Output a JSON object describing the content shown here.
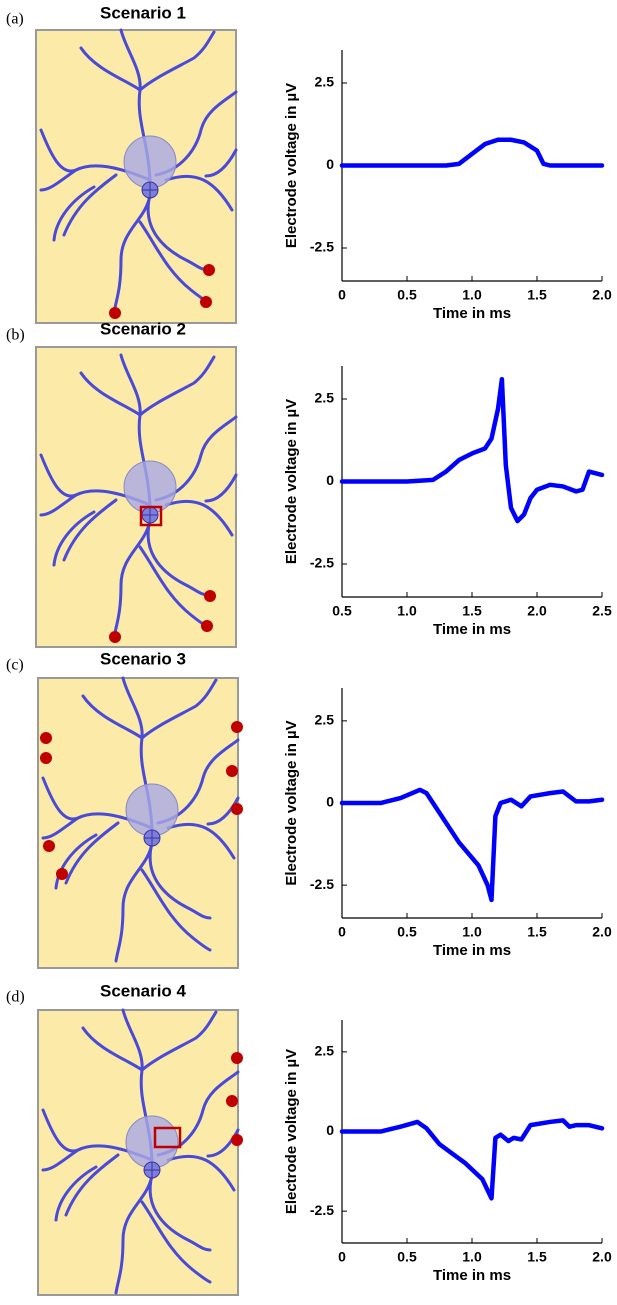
{
  "chart_data": [
    {
      "type": "line",
      "panel_label": "(a)",
      "title": "Scenario 1",
      "xlabel": "Time in ms",
      "ylabel": "Electrode voltage in µV",
      "color": "#0000ff",
      "x": [
        0,
        0.2,
        0.4,
        0.6,
        0.8,
        0.9,
        1.0,
        1.1,
        1.2,
        1.3,
        1.4,
        1.5,
        1.55,
        1.6,
        1.8,
        2.0
      ],
      "values": [
        0,
        0,
        0,
        0,
        0,
        0.05,
        0.35,
        0.65,
        0.78,
        0.78,
        0.7,
        0.45,
        0.05,
        0,
        0,
        0
      ],
      "xlim": [
        0,
        2
      ],
      "xticks": [
        0,
        0.5,
        {
          "value": 1,
          "label": "1.0"
        },
        1.5,
        {
          "value": 2,
          "label": "2.0"
        }
      ],
      "ylim": [
        -3.5,
        3.5
      ],
      "yticks": [
        -2.5,
        0,
        2.5
      ]
    },
    {
      "type": "line",
      "panel_label": "(b)",
      "title": "Scenario 2",
      "xlabel": "Time in ms",
      "ylabel": "Electrode voltage in µV",
      "color": "#0000ff",
      "x": [
        0.5,
        0.8,
        1.0,
        1.2,
        1.3,
        1.4,
        1.5,
        1.6,
        1.65,
        1.7,
        1.73,
        1.76,
        1.8,
        1.85,
        1.9,
        1.95,
        2.0,
        2.1,
        2.2,
        2.3,
        2.35,
        2.4,
        2.5
      ],
      "values": [
        0,
        0,
        0,
        0.05,
        0.3,
        0.65,
        0.85,
        1.0,
        1.3,
        2.2,
        3.1,
        0.5,
        -0.8,
        -1.2,
        -1.0,
        -0.5,
        -0.25,
        -0.1,
        -0.15,
        -0.3,
        -0.25,
        0.3,
        0.2
      ],
      "xlim": [
        0.5,
        2.5
      ],
      "xticks": [
        0.5,
        {
          "value": 1,
          "label": "1.0"
        },
        1.5,
        {
          "value": 2,
          "label": "2.0"
        },
        2.5
      ],
      "ylim": [
        -3.5,
        3.5
      ],
      "yticks": [
        -2.5,
        0,
        2.5
      ]
    },
    {
      "type": "line",
      "panel_label": "(c)",
      "title": "Scenario 3",
      "xlabel": "Time in ms",
      "ylabel": "Electrode voltage in µV",
      "color": "#0000ff",
      "x": [
        0,
        0.3,
        0.45,
        0.6,
        0.65,
        0.75,
        0.9,
        1.05,
        1.12,
        1.15,
        1.18,
        1.22,
        1.3,
        1.38,
        1.45,
        1.6,
        1.7,
        1.8,
        1.9,
        2.0
      ],
      "values": [
        0,
        0,
        0.15,
        0.4,
        0.3,
        -0.3,
        -1.2,
        -1.9,
        -2.5,
        -2.95,
        -0.4,
        0,
        0.1,
        -0.1,
        0.2,
        0.3,
        0.35,
        0.05,
        0.05,
        0.1
      ],
      "xlim": [
        0,
        2
      ],
      "xticks": [
        0,
        0.5,
        {
          "value": 1,
          "label": "1.0"
        },
        1.5,
        {
          "value": 2,
          "label": "2.0"
        }
      ],
      "ylim": [
        -3.5,
        3.5
      ],
      "yticks": [
        -2.5,
        0,
        2.5
      ]
    },
    {
      "type": "line",
      "panel_label": "(d)",
      "title": "Scenario 4",
      "xlabel": "Time in ms",
      "ylabel": "Electrode voltage in µV",
      "color": "#0000ff",
      "x": [
        0,
        0.3,
        0.45,
        0.58,
        0.65,
        0.75,
        0.95,
        1.08,
        1.15,
        1.18,
        1.22,
        1.28,
        1.32,
        1.38,
        1.45,
        1.6,
        1.7,
        1.75,
        1.8,
        1.9,
        2.0
      ],
      "values": [
        0,
        0,
        0.15,
        0.3,
        0.1,
        -0.4,
        -1.0,
        -1.5,
        -2.1,
        -0.2,
        -0.1,
        -0.3,
        -0.2,
        -0.25,
        0.2,
        0.3,
        0.35,
        0.15,
        0.2,
        0.2,
        0.1
      ],
      "xlim": [
        0,
        2
      ],
      "xticks": [
        0,
        0.5,
        {
          "value": 1,
          "label": "1.0"
        },
        1.5,
        {
          "value": 2,
          "label": "2.0"
        }
      ],
      "ylim": [
        -3.5,
        3.5
      ],
      "yticks": [
        -2.5,
        0,
        2.5
      ]
    }
  ]
}
